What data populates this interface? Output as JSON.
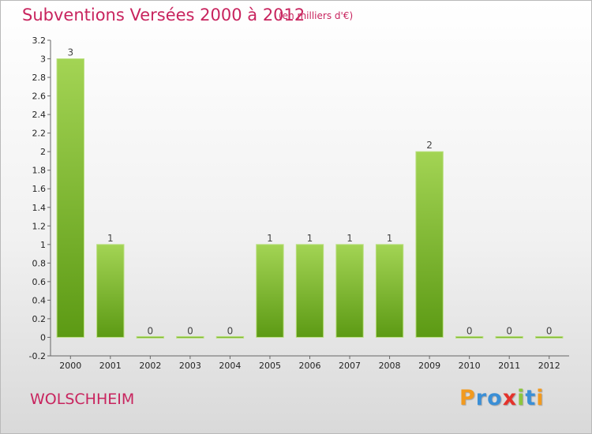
{
  "title": "Subventions Versées 2000 à 2012",
  "unit": "(en milliers d'€)",
  "commune": "WOLSCHHEIM",
  "logo": {
    "text": "Proxiti",
    "letters": [
      "P",
      "r",
      "o",
      "x",
      "i",
      "t",
      "i"
    ],
    "colors": [
      "#f29a1f",
      "#3b8fd6",
      "#3b8fd6",
      "#e4322b",
      "#8cc63e",
      "#3b8fd6",
      "#f29a1f"
    ]
  },
  "colors": {
    "accent": "#c8245e",
    "bar_top": "#a3d454",
    "bar_bottom": "#5c9a14"
  },
  "chart_data": {
    "type": "bar",
    "categories": [
      "2000",
      "2001",
      "2002",
      "2003",
      "2004",
      "2005",
      "2006",
      "2007",
      "2008",
      "2009",
      "2010",
      "2011",
      "2012"
    ],
    "values": [
      3,
      1,
      0,
      0,
      0,
      1,
      1,
      1,
      1,
      2,
      0,
      0,
      0
    ],
    "data_labels": [
      "3",
      "1",
      "0",
      "0",
      "0",
      "1",
      "1",
      "1",
      "1",
      "2",
      "0",
      "0",
      "0"
    ],
    "ylim": [
      -0.2,
      3.2
    ],
    "yticks": [
      "-0.2",
      "0",
      "0.2",
      "0.4",
      "0.6",
      "0.8",
      "1",
      "1.2",
      "1.4",
      "1.6",
      "1.8",
      "2",
      "2.2",
      "2.4",
      "2.6",
      "2.8",
      "3",
      "3.2"
    ],
    "grid": false,
    "xlabel": "",
    "ylabel": ""
  }
}
